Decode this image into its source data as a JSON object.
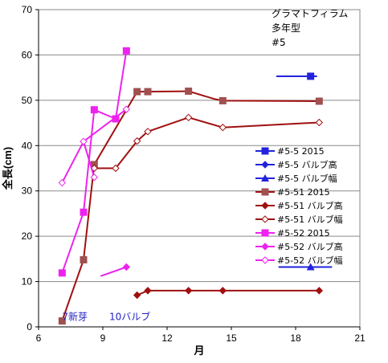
{
  "chart_data": {
    "type": "line",
    "title_lines": [
      "グラマトフィラム",
      "多年型",
      "#5"
    ],
    "xlabel": "月",
    "ylabel": "全長(cm)",
    "xlim": [
      6,
      21
    ],
    "ylim": [
      0,
      70
    ],
    "xticks": [
      6,
      9,
      12,
      15,
      18,
      21
    ],
    "yticks": [
      0,
      10,
      20,
      30,
      40,
      50,
      60,
      70
    ],
    "grid": "horizontal",
    "legend_position": "right",
    "annotations": [
      {
        "text": "7新芽",
        "x": 7.1,
        "y": 2.2,
        "color": "#1f1fbf"
      },
      {
        "text": "10バルブ",
        "x": 9.3,
        "y": 2.2,
        "color": "#1f1fbf"
      }
    ],
    "series": [
      {
        "name": "#5-5 2015",
        "color": "#2222dd",
        "marker": "square-filled",
        "points": [
          [
            17.1,
            55.3
          ],
          [
            18.7,
            55.3
          ],
          [
            19.0,
            55.3
          ]
        ],
        "marked": [
          1
        ]
      },
      {
        "name": "#5-5 バルブ高",
        "color": "#2222dd",
        "marker": "diamond-filled",
        "points": []
      },
      {
        "name": "#5-5 バルブ幅",
        "color": "#2222dd",
        "marker": "triangle-filled",
        "points": [
          [
            17.2,
            13.2
          ],
          [
            18.7,
            13.2
          ],
          [
            19.7,
            13.2
          ]
        ],
        "marked": [
          1
        ]
      },
      {
        "name": "#5-51 2015",
        "color": "#a05050",
        "line_color": "#a01010",
        "marker": "square-filled",
        "points": [
          [
            7.1,
            1.3
          ],
          [
            8.1,
            14.8
          ],
          [
            8.6,
            35.8
          ],
          [
            10.6,
            51.9
          ],
          [
            11.1,
            51.9
          ],
          [
            13.0,
            52.0
          ],
          [
            14.2,
            50.3
          ],
          [
            14.6,
            49.9
          ],
          [
            19.1,
            49.8
          ]
        ],
        "marked": [
          0,
          1,
          2,
          3,
          4,
          5,
          7,
          8
        ]
      },
      {
        "name": "#5-51 バルブ高",
        "color": "#a01010",
        "marker": "diamond-filled",
        "points": [
          [
            10.6,
            7.0
          ],
          [
            11.1,
            8.0
          ],
          [
            13.0,
            8.0
          ],
          [
            14.6,
            8.0
          ],
          [
            19.1,
            8.0
          ]
        ],
        "marked": [
          0,
          1,
          2,
          3,
          4
        ]
      },
      {
        "name": "#5-51 バルブ幅",
        "color": "#a01010",
        "marker": "diamond-open",
        "points": [
          [
            8.6,
            35.0
          ],
          [
            9.6,
            35.0
          ],
          [
            10.6,
            41.0
          ],
          [
            11.1,
            43.1
          ],
          [
            13.0,
            46.2
          ],
          [
            14.6,
            44.0
          ],
          [
            19.1,
            45.1
          ]
        ],
        "marked": [
          0,
          1,
          2,
          3,
          4,
          5,
          6
        ]
      },
      {
        "name": "#5-52 2015",
        "color": "#ee22ee",
        "marker": "square-filled",
        "points": [
          [
            7.1,
            11.9
          ],
          [
            8.1,
            25.3
          ],
          [
            8.6,
            47.9
          ],
          [
            9.6,
            45.9
          ],
          [
            10.1,
            60.9
          ]
        ],
        "marked": [
          0,
          1,
          2,
          3,
          4
        ]
      },
      {
        "name": "#5-52 バルブ高",
        "color": "#ee22ee",
        "marker": "diamond-filled",
        "points": [
          [
            8.9,
            11.2
          ],
          [
            10.1,
            13.2
          ]
        ],
        "marked": [
          1
        ]
      },
      {
        "name": "#5-52 バルブ幅",
        "color": "#ee22ee",
        "marker": "diamond-open",
        "points": [
          [
            7.1,
            31.8
          ],
          [
            8.1,
            40.9
          ],
          [
            8.6,
            33.0
          ],
          [
            8.1,
            40.9
          ],
          [
            10.1,
            48.0
          ]
        ],
        "marked": [
          0,
          1,
          2,
          4
        ]
      }
    ]
  }
}
